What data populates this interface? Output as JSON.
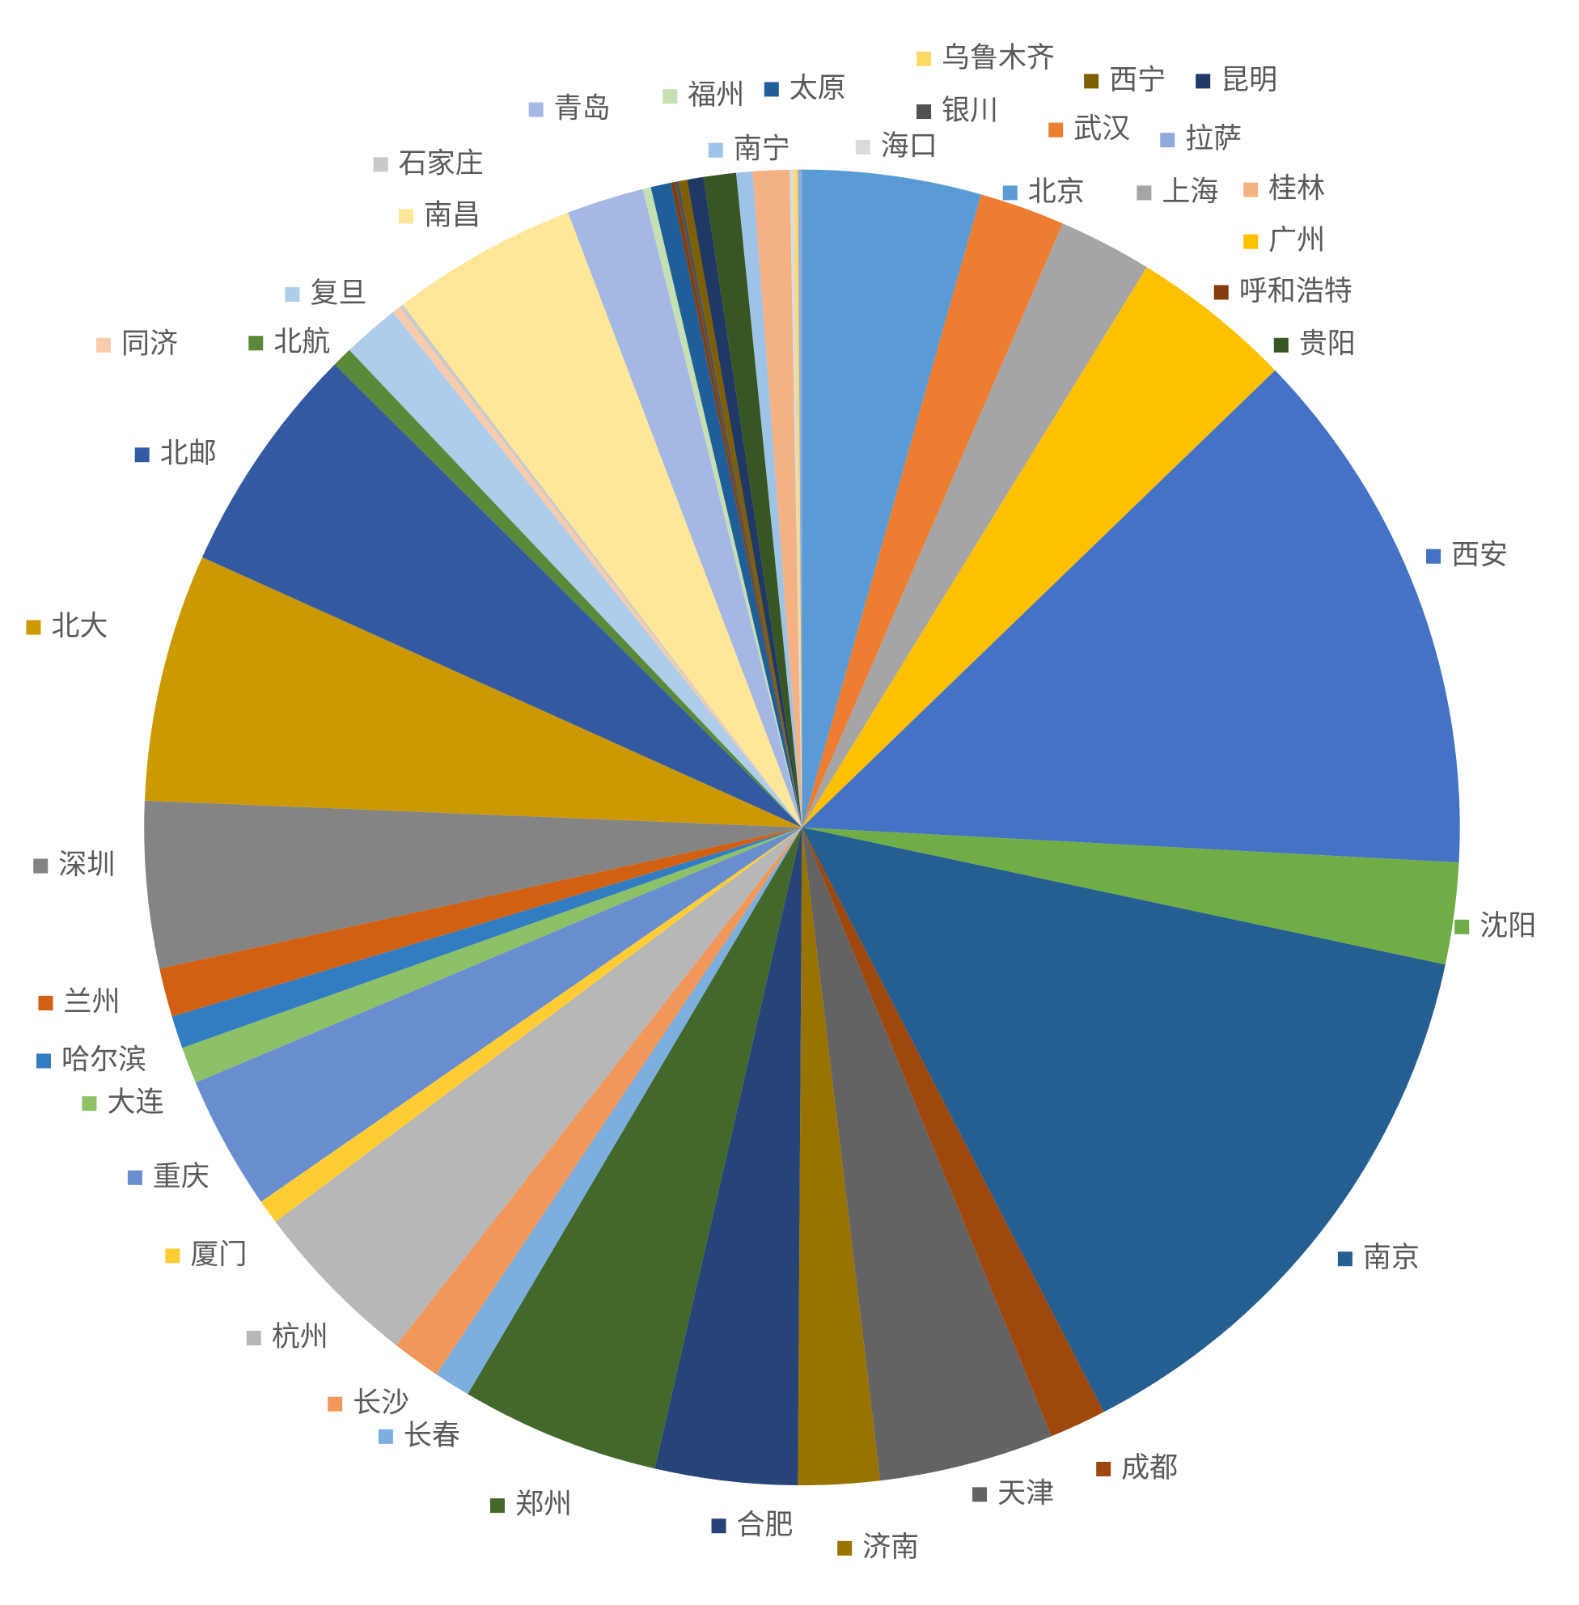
{
  "chart_data": {
    "type": "pie",
    "categories": [
      "北京",
      "武汉",
      "上海",
      "广州",
      "西安",
      "沈阳",
      "南京",
      "成都",
      "天津",
      "济南",
      "合肥",
      "郑州",
      "长春",
      "长沙",
      "杭州",
      "厦门",
      "重庆",
      "大连",
      "哈尔滨",
      "兰州",
      "深圳",
      "北大",
      "北邮",
      "北航",
      "复旦",
      "同济",
      "石家庄",
      "南昌",
      "青岛",
      "福州",
      "太原",
      "呼和浩特",
      "银川",
      "西宁",
      "昆明",
      "贵阳",
      "南宁",
      "桂林",
      "海口",
      "乌鲁木齐",
      "拉萨"
    ],
    "values": [
      4.4,
      2.1,
      2.3,
      4.0,
      13.1,
      2.5,
      14.1,
      1.4,
      4.3,
      2.0,
      3.5,
      4.9,
      0.9,
      1.2,
      4.2,
      0.6,
      3.3,
      0.9,
      0.8,
      1.2,
      4.1,
      6.1,
      5.7,
      0.5,
      1.4,
      0.2,
      0.1,
      4.6,
      1.9,
      0.2,
      0.5,
      0.1,
      0.1,
      0.2,
      0.4,
      0.8,
      0.4,
      0.9,
      0.1,
      0.1,
      0.1
    ],
    "colors": [
      "#5B9BD5",
      "#ED7D31",
      "#A5A5A5",
      "#FFC000",
      "#4472C4",
      "#70AD47",
      "#255E91",
      "#9E480E",
      "#636363",
      "#997300",
      "#264478",
      "#43682B",
      "#7CAFDD",
      "#F1975A",
      "#B7B7B7",
      "#FFCD33",
      "#698ED0",
      "#8CC168",
      "#327DC2",
      "#D26012",
      "#848484",
      "#CC9A00",
      "#335AA1",
      "#5A8A39",
      "#ADCDEA",
      "#F8CBAD",
      "#C9C9C9",
      "#FFE699",
      "#A5B7E3",
      "#C5E0B3",
      "#1F5F99",
      "#843C0C",
      "#525252",
      "#7F6000",
      "#203864",
      "#375623",
      "#9DC3E6",
      "#F4B183",
      "#DBDBDB",
      "#FFD966",
      "#8FAADC"
    ]
  }
}
